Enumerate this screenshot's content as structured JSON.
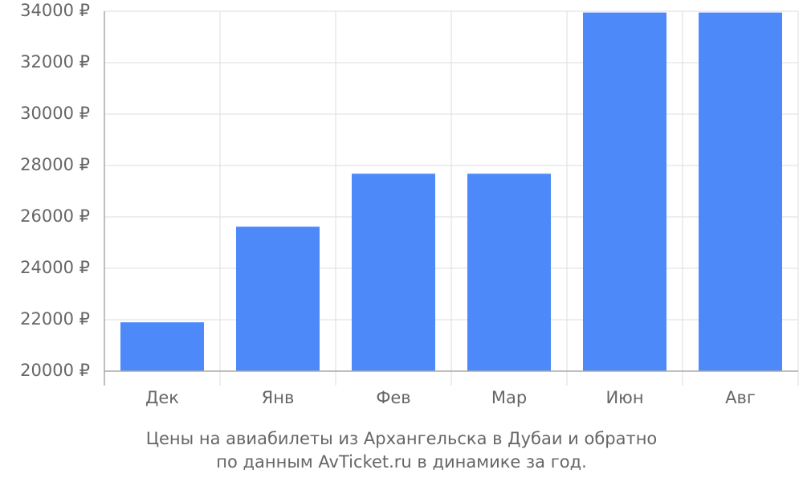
{
  "chart_data": {
    "type": "bar",
    "caption": [
      "Цены на авиабилеты из Архангельска в Дубаи и обратно",
      "по данным AvTicket.ru в динамике за год."
    ],
    "categories": [
      "Дек",
      "Янв",
      "Фев",
      "Мар",
      "Июн",
      "Авг"
    ],
    "values": [
      21900,
      25620,
      27680,
      27680,
      33950,
      33950
    ],
    "color": "#4d89f9",
    "ylim": [
      20000,
      34000
    ],
    "yticks": [
      {
        "value": 20000,
        "label": "20000 ₽"
      },
      {
        "value": 22000,
        "label": "22000 ₽"
      },
      {
        "value": 24000,
        "label": "24000 ₽"
      },
      {
        "value": 26000,
        "label": "26000 ₽"
      },
      {
        "value": 28000,
        "label": "28000 ₽"
      },
      {
        "value": 30000,
        "label": "30000 ₽"
      },
      {
        "value": 32000,
        "label": "32000 ₽"
      },
      {
        "value": 34000,
        "label": "34000 ₽"
      }
    ],
    "grid": true
  }
}
